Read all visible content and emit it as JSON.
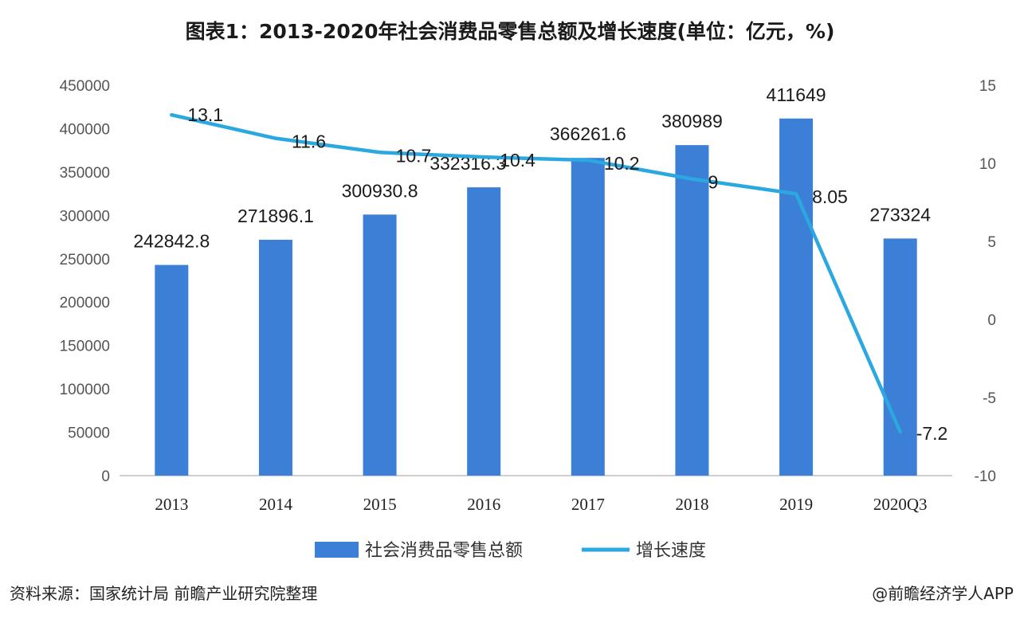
{
  "chart_data": {
    "type": "bar+line",
    "title": "图表1：2013-2020年社会消费品零售总额及增长速度(单位：亿元，%)",
    "categories": [
      "2013",
      "2014",
      "2015",
      "2016",
      "2017",
      "2018",
      "2019",
      "2020Q3"
    ],
    "series": [
      {
        "name": "社会消费品零售总额",
        "type": "bar",
        "axis": "left",
        "color": "#3c7fd6",
        "values": [
          242842.8,
          271896.1,
          300930.8,
          332316.3,
          366261.6,
          380989,
          411649,
          273324
        ],
        "labels": [
          "242842.8",
          "271896.1",
          "300930.8",
          "332316.3",
          "366261.6",
          "380989",
          "411649",
          "273324"
        ]
      },
      {
        "name": "增长速度",
        "type": "line",
        "axis": "right",
        "color": "#2ba8e0",
        "values": [
          13.1,
          11.6,
          10.7,
          10.4,
          10.2,
          9,
          8.05,
          -7.2
        ],
        "labels": [
          "13.1",
          "11.6",
          "10.7",
          "10.4",
          "10.2",
          "9",
          "8.05",
          "-7.2"
        ]
      }
    ],
    "y_left": {
      "min": 0,
      "max": 450000,
      "ticks": [
        "0",
        "50000",
        "100000",
        "150000",
        "200000",
        "250000",
        "300000",
        "350000",
        "400000",
        "450000"
      ]
    },
    "y_right": {
      "min": -10,
      "max": 15,
      "ticks": [
        "-10",
        "-5",
        "0",
        "5",
        "10",
        "15"
      ]
    },
    "legend_position": "bottom"
  },
  "footer": {
    "source": "资料来源：国家统计局 前瞻产业研究院整理",
    "credit": "@前瞻经济学人APP"
  }
}
